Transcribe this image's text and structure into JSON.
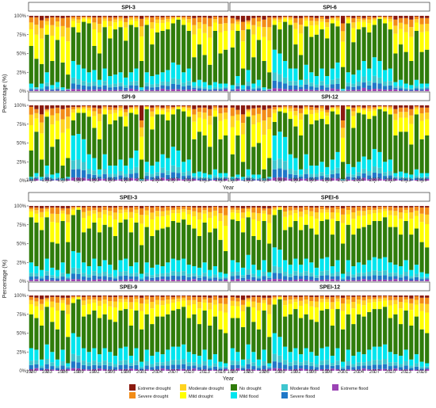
{
  "figure": {
    "upper_ylabel": "Percentage (%)",
    "lower_ylabel": "Percentage (%)",
    "upper_xlabel": "Year",
    "lower_xlabel": "Year"
  },
  "colors": {
    "Extreme drought": "#8b1a0f",
    "Severe drought": "#f28c17",
    "Moderate drought": "#ffd31f",
    "Mild drought": "#ffff00",
    "No drought": "#2f7c0a",
    "Mild flood": "#00e5ee",
    "Moderate flood": "#3fc6cf",
    "Severe flood": "#1f78c8",
    "Extreme flood": "#9b44b4"
  },
  "legend": {
    "position": "bottom",
    "rows": [
      [
        "Extreme drought",
        "Moderate drought",
        "No drought",
        "Moderate flood",
        "Extreme flood"
      ],
      [
        "Severe drought",
        "Mild drought",
        "Mild flood",
        "Severe flood"
      ]
    ]
  },
  "chart_data": {
    "type": "bar",
    "stacked": true,
    "years": [
      1980,
      1981,
      1982,
      1983,
      1984,
      1985,
      1986,
      1987,
      1988,
      1989,
      1990,
      1991,
      1992,
      1993,
      1994,
      1995,
      1996,
      1997,
      1998,
      1999,
      2000,
      2001,
      2002,
      2003,
      2004,
      2005,
      2006,
      2007,
      2008,
      2009,
      2010,
      2011,
      2012,
      2013,
      2014,
      2015,
      2016,
      2017
    ],
    "xtick_labels": [
      "1980",
      "1983",
      "1986",
      "1989",
      "1992",
      "1995",
      "1998",
      "2001",
      "2004",
      "2007",
      "2010",
      "2013",
      "2016"
    ],
    "ytick_labels": [
      "0%",
      "25%",
      "50%",
      "75%",
      "100%"
    ],
    "ylim": [
      0,
      100
    ],
    "categories_bottom_to_top": [
      "Extreme flood",
      "Severe flood",
      "Moderate flood",
      "Mild flood",
      "No drought",
      "Mild drought",
      "Moderate drought",
      "Severe drought",
      "Extreme drought"
    ],
    "panels": [
      {
        "title": "SPI-3",
        "top_of_no_drought": [
          60,
          43,
          36,
          75,
          40,
          68,
          38,
          22,
          85,
          78,
          92,
          90,
          60,
          50,
          85,
          70,
          82,
          85,
          67,
          88,
          85,
          40,
          88,
          62,
          78,
          80,
          82,
          90,
          95,
          88,
          80,
          45,
          62,
          48,
          35,
          80,
          50,
          55
        ],
        "top_of_mild_flood": [
          10,
          5,
          10,
          25,
          8,
          12,
          5,
          3,
          40,
          35,
          30,
          25,
          28,
          15,
          30,
          20,
          22,
          25,
          18,
          25,
          30,
          5,
          25,
          20,
          22,
          25,
          28,
          38,
          35,
          25,
          30,
          12,
          15,
          12,
          8,
          12,
          10,
          10
        ],
        "extreme_drought": [
          2,
          2,
          6,
          3,
          2,
          2,
          3,
          2,
          1,
          1,
          1,
          1,
          2,
          2,
          1,
          2,
          2,
          1,
          3,
          1,
          1,
          4,
          1,
          2,
          1,
          2,
          1,
          1,
          1,
          1,
          1,
          3,
          2,
          2,
          3,
          1,
          2,
          2
        ]
      },
      {
        "title": "SPI-6",
        "top_of_no_drought": [
          58,
          80,
          30,
          82,
          45,
          68,
          40,
          25,
          88,
          82,
          92,
          88,
          62,
          48,
          86,
          72,
          75,
          82,
          70,
          90,
          86,
          32,
          90,
          65,
          82,
          85,
          78,
          88,
          96,
          90,
          82,
          50,
          62,
          52,
          40,
          80,
          52,
          55
        ],
        "top_of_mild_flood": [
          8,
          20,
          8,
          28,
          10,
          15,
          5,
          3,
          55,
          50,
          40,
          30,
          30,
          15,
          35,
          25,
          20,
          30,
          20,
          30,
          38,
          3,
          25,
          22,
          28,
          40,
          30,
          45,
          40,
          28,
          30,
          12,
          15,
          10,
          8,
          15,
          10,
          10
        ],
        "extreme_drought": [
          3,
          5,
          8,
          6,
          3,
          2,
          5,
          2,
          2,
          2,
          1,
          1,
          3,
          3,
          1,
          2,
          3,
          1,
          4,
          2,
          1,
          10,
          1,
          3,
          1,
          3,
          1,
          2,
          1,
          1,
          1,
          5,
          3,
          3,
          5,
          1,
          3,
          3
        ]
      },
      {
        "title": "SPI-9",
        "top_of_no_drought": [
          40,
          65,
          28,
          85,
          45,
          55,
          20,
          30,
          80,
          90,
          90,
          85,
          70,
          55,
          88,
          75,
          80,
          85,
          72,
          90,
          88,
          28,
          95,
          68,
          88,
          88,
          80,
          88,
          95,
          92,
          85,
          55,
          65,
          60,
          45,
          85,
          55,
          60
        ],
        "top_of_mild_flood": [
          5,
          10,
          5,
          20,
          8,
          10,
          3,
          5,
          60,
          62,
          55,
          35,
          30,
          15,
          35,
          20,
          20,
          28,
          20,
          30,
          40,
          2,
          25,
          20,
          25,
          35,
          30,
          45,
          40,
          25,
          28,
          10,
          12,
          10,
          8,
          15,
          10,
          10
        ],
        "extreme_drought": [
          2,
          5,
          12,
          5,
          4,
          3,
          5,
          3,
          2,
          2,
          1,
          1,
          3,
          4,
          1,
          2,
          3,
          1,
          5,
          2,
          1,
          20,
          1,
          3,
          1,
          3,
          1,
          2,
          1,
          1,
          1,
          5,
          3,
          3,
          5,
          1,
          3,
          3
        ]
      },
      {
        "title": "SPI-12",
        "top_of_no_drought": [
          35,
          60,
          25,
          85,
          45,
          50,
          15,
          30,
          78,
          92,
          90,
          82,
          72,
          60,
          88,
          75,
          80,
          82,
          75,
          92,
          88,
          25,
          95,
          70,
          90,
          88,
          82,
          86,
          95,
          92,
          88,
          60,
          65,
          65,
          48,
          88,
          55,
          60
        ],
        "top_of_mild_flood": [
          5,
          8,
          5,
          15,
          8,
          8,
          3,
          5,
          60,
          65,
          58,
          35,
          30,
          15,
          35,
          20,
          20,
          25,
          18,
          28,
          38,
          2,
          22,
          18,
          25,
          32,
          28,
          42,
          38,
          25,
          28,
          10,
          12,
          10,
          8,
          15,
          10,
          10
        ],
        "extreme_drought": [
          3,
          6,
          12,
          5,
          4,
          3,
          6,
          4,
          2,
          2,
          1,
          1,
          3,
          4,
          1,
          2,
          3,
          1,
          6,
          2,
          1,
          20,
          1,
          3,
          1,
          3,
          1,
          2,
          1,
          1,
          1,
          5,
          3,
          3,
          5,
          1,
          3,
          3
        ]
      },
      {
        "title": "SPEI-3",
        "top_of_no_drought": [
          85,
          78,
          68,
          85,
          52,
          50,
          80,
          52,
          88,
          95,
          65,
          70,
          78,
          65,
          75,
          72,
          60,
          78,
          82,
          65,
          78,
          48,
          72,
          60,
          68,
          70,
          72,
          80,
          78,
          82,
          75,
          70,
          60,
          78,
          65,
          70,
          55,
          40
        ],
        "top_of_mild_flood": [
          25,
          20,
          15,
          30,
          18,
          15,
          25,
          10,
          40,
          38,
          25,
          20,
          30,
          20,
          28,
          22,
          15,
          28,
          30,
          20,
          25,
          10,
          25,
          18,
          22,
          20,
          25,
          30,
          28,
          30,
          22,
          20,
          18,
          25,
          15,
          20,
          12,
          10
        ],
        "extreme_drought": [
          2,
          2,
          3,
          2,
          2,
          2,
          3,
          3,
          1,
          1,
          2,
          1,
          2,
          2,
          1,
          2,
          2,
          1,
          2,
          2,
          1,
          3,
          1,
          2,
          1,
          2,
          1,
          2,
          1,
          1,
          1,
          2,
          2,
          2,
          2,
          1,
          2,
          2
        ]
      },
      {
        "title": "SPEI-6",
        "top_of_no_drought": [
          82,
          80,
          65,
          85,
          60,
          55,
          80,
          50,
          88,
          95,
          68,
          72,
          80,
          68,
          75,
          70,
          62,
          80,
          82,
          62,
          80,
          50,
          75,
          62,
          70,
          72,
          75,
          80,
          80,
          85,
          72,
          72,
          62,
          80,
          62,
          70,
          52,
          45
        ],
        "top_of_mild_flood": [
          28,
          25,
          18,
          35,
          22,
          15,
          28,
          12,
          45,
          42,
          28,
          22,
          30,
          22,
          30,
          25,
          18,
          30,
          32,
          20,
          28,
          10,
          28,
          20,
          25,
          22,
          28,
          32,
          30,
          32,
          25,
          22,
          20,
          28,
          15,
          22,
          12,
          10
        ],
        "extreme_drought": [
          2,
          2,
          3,
          2,
          2,
          2,
          3,
          3,
          1,
          1,
          2,
          1,
          2,
          2,
          1,
          2,
          2,
          1,
          2,
          2,
          1,
          3,
          1,
          2,
          1,
          2,
          1,
          2,
          1,
          1,
          1,
          2,
          2,
          2,
          2,
          1,
          2,
          2
        ]
      },
      {
        "title": "SPEI-9",
        "top_of_no_drought": [
          75,
          70,
          60,
          85,
          65,
          55,
          80,
          45,
          90,
          95,
          72,
          75,
          80,
          70,
          75,
          68,
          65,
          80,
          82,
          60,
          80,
          55,
          75,
          62,
          72,
          72,
          75,
          80,
          82,
          85,
          70,
          75,
          62,
          80,
          60,
          72,
          55,
          50
        ],
        "top_of_mild_flood": [
          30,
          28,
          15,
          35,
          25,
          15,
          28,
          10,
          50,
          45,
          30,
          25,
          30,
          22,
          30,
          25,
          20,
          30,
          32,
          20,
          30,
          12,
          28,
          20,
          25,
          22,
          28,
          32,
          32,
          35,
          25,
          22,
          20,
          28,
          15,
          22,
          12,
          10
        ],
        "extreme_drought": [
          2,
          3,
          5,
          3,
          2,
          2,
          3,
          3,
          1,
          1,
          2,
          1,
          2,
          2,
          1,
          2,
          2,
          1,
          2,
          2,
          1,
          3,
          1,
          2,
          1,
          2,
          1,
          2,
          1,
          1,
          1,
          2,
          2,
          2,
          3,
          1,
          3,
          3
        ]
      },
      {
        "title": "SPEI-12",
        "top_of_no_drought": [
          70,
          70,
          58,
          85,
          65,
          55,
          80,
          45,
          88,
          95,
          72,
          75,
          82,
          70,
          75,
          68,
          65,
          80,
          82,
          60,
          82,
          55,
          75,
          62,
          75,
          72,
          78,
          82,
          82,
          85,
          70,
          75,
          62,
          80,
          60,
          72,
          55,
          50
        ],
        "top_of_mild_flood": [
          30,
          25,
          15,
          35,
          25,
          15,
          28,
          10,
          50,
          45,
          32,
          25,
          30,
          22,
          30,
          25,
          20,
          30,
          32,
          20,
          30,
          12,
          28,
          20,
          25,
          22,
          28,
          32,
          32,
          35,
          25,
          22,
          20,
          28,
          15,
          22,
          12,
          10
        ],
        "extreme_drought": [
          2,
          3,
          6,
          3,
          2,
          2,
          3,
          3,
          1,
          1,
          2,
          1,
          2,
          2,
          1,
          2,
          2,
          1,
          2,
          2,
          1,
          3,
          1,
          2,
          1,
          2,
          1,
          2,
          1,
          1,
          1,
          2,
          2,
          2,
          4,
          1,
          3,
          3
        ]
      }
    ]
  }
}
